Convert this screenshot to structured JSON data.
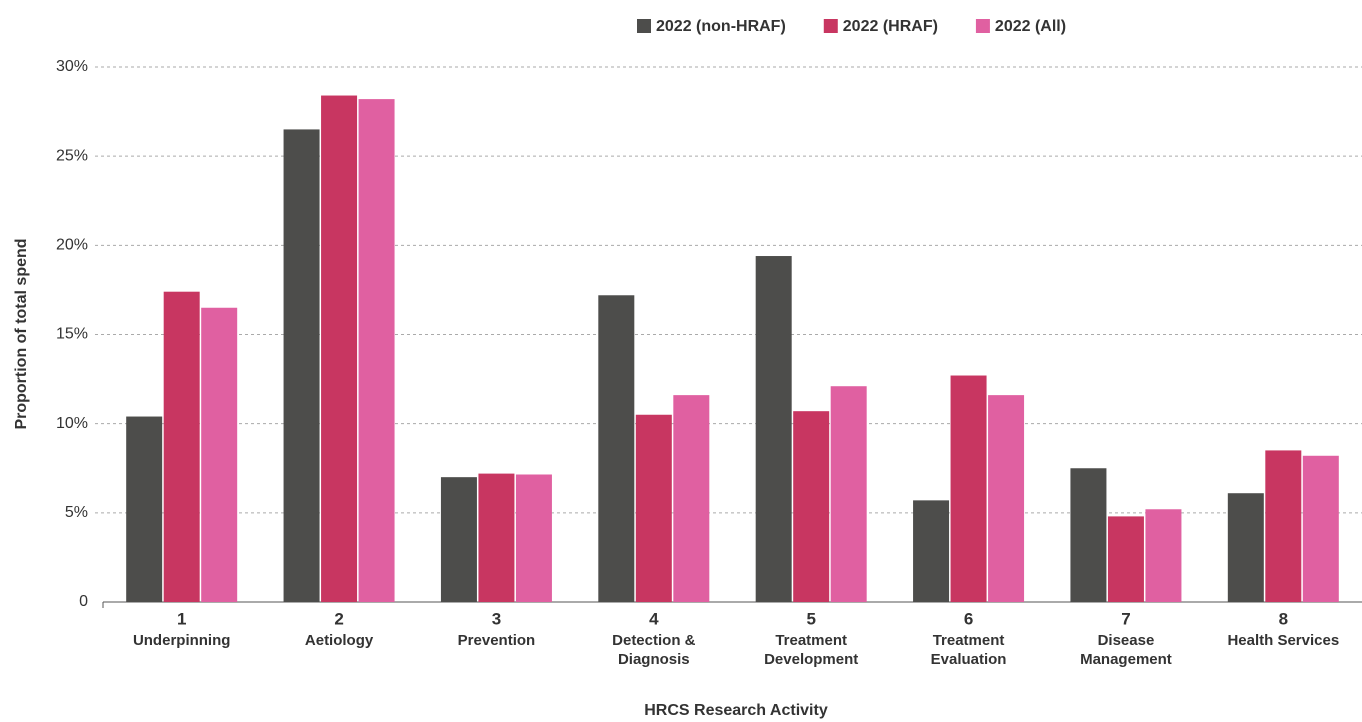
{
  "chart_data": {
    "type": "bar",
    "x_label": "HRCS Research Activity",
    "y_label": "Proportion of total spend",
    "categories": [
      [
        "1",
        "Underpinning"
      ],
      [
        "2",
        "Aetiology"
      ],
      [
        "3",
        "Prevention"
      ],
      [
        "4",
        "Detection &",
        "Diagnosis"
      ],
      [
        "5",
        "Treatment",
        "Development"
      ],
      [
        "6",
        "Treatment",
        "Evaluation"
      ],
      [
        "7",
        "Disease",
        "Management"
      ],
      [
        "8",
        "Health Services"
      ]
    ],
    "series": [
      {
        "name": "2022 (non-HRAF)",
        "color": "#4d4d4b",
        "values": [
          10.4,
          26.5,
          7.0,
          17.2,
          19.4,
          5.7,
          7.5,
          6.1
        ]
      },
      {
        "name": "2022 (HRAF)",
        "color": "#c83661",
        "values": [
          17.4,
          28.4,
          7.2,
          10.5,
          10.7,
          12.7,
          4.8,
          8.5
        ]
      },
      {
        "name": "2022 (All)",
        "color": "#e060a1",
        "values": [
          16.5,
          28.2,
          7.15,
          11.6,
          12.1,
          11.6,
          5.2,
          8.2
        ]
      }
    ],
    "ylim": [
      0,
      30
    ],
    "yticks": [
      0,
      {
        "value": 5,
        "label": "5%"
      },
      {
        "value": 10,
        "label": "10%"
      },
      {
        "value": 15,
        "label": "15%"
      },
      {
        "value": 20,
        "label": "20%"
      },
      {
        "value": 25,
        "label": "25%"
      },
      {
        "value": 30,
        "label": "30%"
      }
    ],
    "grid": true,
    "legend": "top"
  }
}
